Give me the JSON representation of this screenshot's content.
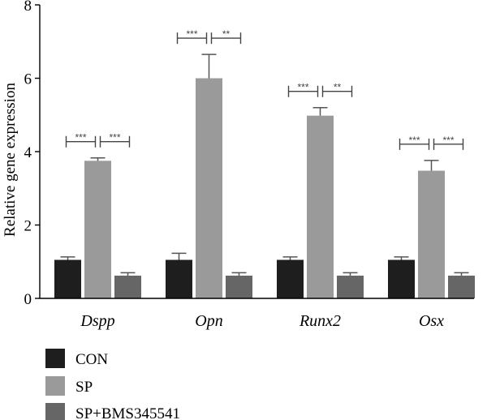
{
  "chart_data": {
    "type": "bar",
    "title": "",
    "xlabel": "",
    "ylabel": "Relative gene expression",
    "ylim": [
      0,
      8
    ],
    "yticks": [
      "0",
      "2",
      "4",
      "6",
      "8"
    ],
    "categories": [
      "Dspp",
      "Opn",
      "Runx2",
      "Osx"
    ],
    "series": [
      {
        "name": "CON",
        "color": "#1e1e1e",
        "values": [
          1.05,
          1.05,
          1.05,
          1.05
        ],
        "errors": [
          0.08,
          0.18,
          0.08,
          0.08
        ]
      },
      {
        "name": "SP",
        "color": "#9a9a9a",
        "values": [
          3.75,
          6.0,
          4.98,
          3.48
        ],
        "errors": [
          0.08,
          0.65,
          0.22,
          0.28
        ]
      },
      {
        "name": "SP+BMS345541",
        "color": "#666666",
        "values": [
          0.62,
          0.62,
          0.62,
          0.62
        ],
        "errors": [
          0.08,
          0.08,
          0.08,
          0.08
        ]
      }
    ],
    "significance": [
      {
        "category": "Dspp",
        "left": "***",
        "right": "***"
      },
      {
        "category": "Opn",
        "left": "***",
        "right": "**"
      },
      {
        "category": "Runx2",
        "left": "***",
        "right": "**"
      },
      {
        "category": "Osx",
        "left": "***",
        "right": "***"
      }
    ],
    "grid": false,
    "legend_position": "bottom-left"
  }
}
